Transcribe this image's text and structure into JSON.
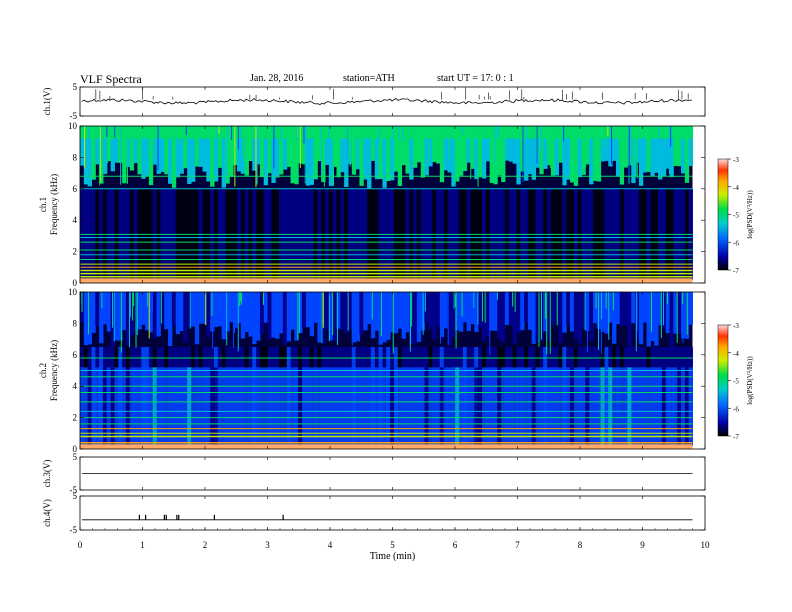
{
  "header": {
    "title": "VLF Spectra",
    "date": "Jan. 28, 2016",
    "station": "station=ATH",
    "start": "start UT =  17: 0 : 1"
  },
  "chart_data": {
    "type": "heatmap",
    "x_axis": {
      "label": "Time (min)",
      "range": [
        0,
        10
      ],
      "ticks": [
        "0",
        "1",
        "2",
        "3",
        "4",
        "5",
        "6",
        "7",
        "8",
        "9",
        "10"
      ]
    },
    "panels": [
      {
        "id": "ch1_voltage",
        "type": "line",
        "ylabel": "ch.1(V)",
        "ylim": [
          -5,
          5
        ],
        "ticks": [
          "5",
          "-5"
        ],
        "baseline": 0
      },
      {
        "id": "ch1_spectrogram",
        "type": "heatmap",
        "ylabel_top": "ch.1",
        "ylabel": "Frequency (kHz)",
        "ylim": [
          0,
          10
        ],
        "ticks": [
          "0",
          "2",
          "4",
          "6",
          "8",
          "10"
        ],
        "colorbar": {
          "label": "log(PSD(V²/Hz))",
          "range": [
            -7,
            -3
          ],
          "ticks": [
            "-3",
            "-4",
            "-5",
            "-6",
            "-7"
          ]
        },
        "bands_khz": [
          0.2,
          0.4,
          0.6,
          0.8,
          1.0,
          1.2,
          1.5,
          1.8,
          2.1,
          2.6,
          2.9,
          3.1,
          6.0,
          6.8
        ]
      },
      {
        "id": "ch2_spectrogram",
        "type": "heatmap",
        "ylabel_top": "ch.2",
        "ylabel": "Frequency (kHz)",
        "ylim": [
          0,
          10
        ],
        "ticks": [
          "0",
          "2",
          "4",
          "6",
          "8",
          "10"
        ],
        "colorbar": {
          "label": "log(PSD(V²/Hz))",
          "range": [
            -7,
            -3
          ],
          "ticks": [
            "-3",
            "-4",
            "-5",
            "-6",
            "-7"
          ]
        },
        "bands_khz": [
          0.4,
          0.8,
          1.0,
          1.3,
          1.6,
          2.0,
          2.4,
          3.0,
          3.6,
          4.0,
          4.6,
          5.0,
          5.8
        ]
      },
      {
        "id": "ch3_voltage",
        "type": "line",
        "ylabel": "ch.3(V)",
        "ylim": [
          -5,
          5
        ],
        "ticks": [
          "5",
          "-5"
        ],
        "baseline": 0
      },
      {
        "id": "ch4_voltage",
        "type": "line",
        "ylabel": "ch.4(V)",
        "ylim": [
          -5,
          5
        ],
        "ticks": [
          "5",
          "-5"
        ],
        "baseline": -2,
        "spikes_min": [
          0.95,
          1.05,
          1.35,
          1.38,
          1.55,
          1.58,
          2.15,
          3.25
        ]
      }
    ],
    "end_time_min": 9.8
  }
}
